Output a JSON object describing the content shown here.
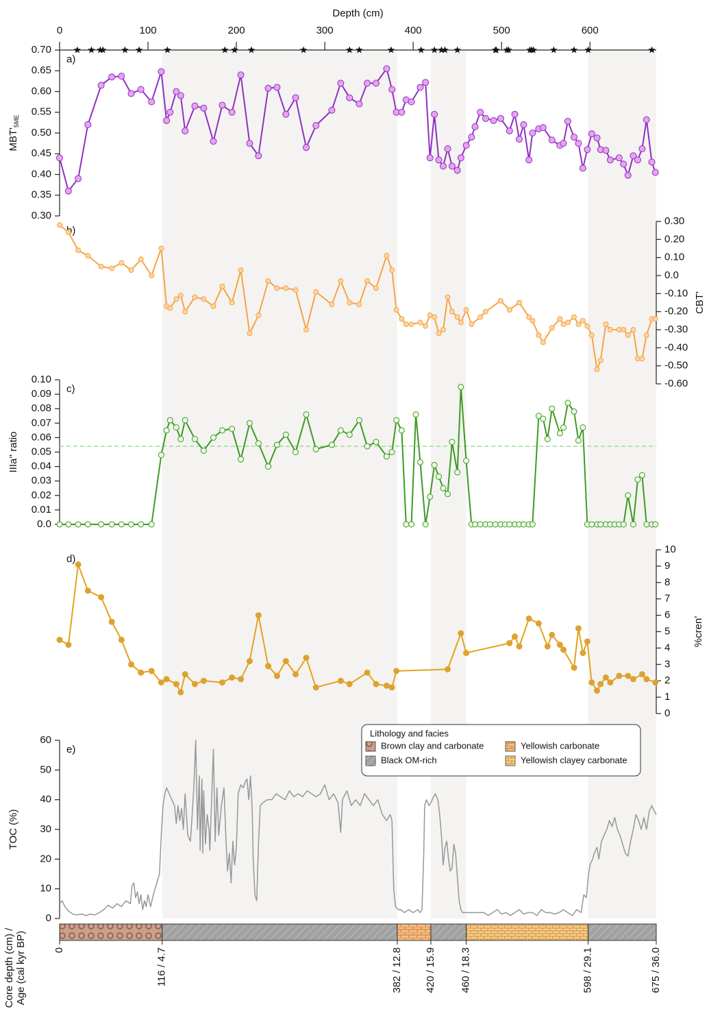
{
  "chart_data": [
    {
      "type": "line",
      "xlabel": "Depth (cm)",
      "xlim": [
        0,
        675
      ],
      "xticks": [
        0,
        100,
        200,
        300,
        400,
        500,
        600
      ],
      "stars_x": [
        20,
        36,
        46,
        49,
        74,
        90,
        122,
        187,
        198,
        217,
        276,
        328,
        339,
        375,
        409,
        424,
        432,
        436,
        450,
        493,
        494,
        506,
        508,
        532,
        534,
        536,
        559,
        582,
        598,
        670
      ],
      "panel_label": "a)",
      "ylabel": "MBT'",
      "ylabel_sub": "5ME",
      "yaxis_side": "left",
      "ylim": [
        0.3,
        0.7
      ],
      "yticks": [
        {
          "value": 0.3,
          "label": "0.30"
        },
        0.35,
        {
          "value": 0.4,
          "label": "0.40"
        },
        0.45,
        {
          "value": 0.5,
          "label": "0.50"
        },
        0.55,
        {
          "value": 0.6,
          "label": "0.60"
        },
        0.65,
        {
          "value": 0.7,
          "label": "0.70"
        }
      ],
      "color": "#8e2fc2",
      "marker_fill": "#e7a3ef",
      "markers": true,
      "x": [
        0,
        10,
        21,
        32,
        47,
        59,
        70,
        81,
        92,
        104,
        115,
        121,
        125,
        132,
        137,
        142,
        153,
        163,
        174,
        184,
        195,
        205,
        215,
        225,
        236,
        246,
        256,
        267,
        279,
        290,
        308,
        318,
        328,
        339,
        348,
        358,
        370,
        376,
        381,
        387,
        392,
        398,
        408,
        414,
        419,
        424,
        429,
        434,
        439,
        444,
        450,
        454,
        460,
        466,
        470,
        476,
        482,
        491,
        499,
        509,
        515,
        520,
        525,
        531,
        535,
        542,
        547,
        557,
        566,
        570,
        575,
        582,
        587,
        592,
        597,
        602,
        608,
        612,
        618,
        623,
        633,
        638,
        643,
        649,
        654,
        659,
        664,
        670,
        674
      ],
      "values": [
        0.44,
        0.36,
        0.39,
        0.52,
        0.615,
        0.635,
        0.637,
        0.595,
        0.605,
        0.575,
        0.648,
        0.53,
        0.55,
        0.6,
        0.59,
        0.505,
        0.565,
        0.56,
        0.48,
        0.567,
        0.55,
        0.64,
        0.475,
        0.445,
        0.608,
        0.61,
        0.545,
        0.585,
        0.465,
        0.518,
        0.555,
        0.62,
        0.585,
        0.57,
        0.62,
        0.62,
        0.655,
        0.605,
        0.55,
        0.55,
        0.58,
        0.575,
        0.61,
        0.622,
        0.44,
        0.545,
        0.435,
        0.42,
        0.462,
        0.42,
        0.41,
        0.44,
        0.47,
        0.49,
        0.515,
        0.55,
        0.535,
        0.53,
        0.535,
        0.505,
        0.545,
        0.485,
        0.52,
        0.435,
        0.5,
        0.51,
        0.513,
        0.483,
        0.47,
        0.475,
        0.528,
        0.49,
        0.475,
        0.415,
        0.46,
        0.498,
        0.488,
        0.46,
        0.458,
        0.435,
        0.44,
        0.425,
        0.398,
        0.445,
        0.435,
        0.462,
        0.532,
        0.43,
        0.405
      ]
    },
    {
      "type": "line",
      "xlim": [
        0,
        675
      ],
      "panel_label": "b)",
      "ylabel": "CBT'",
      "yaxis_side": "right",
      "ylim": [
        -0.6,
        0.3
      ],
      "yticks": [
        {
          "value": 0.3,
          "label": "0.30"
        },
        {
          "value": 0.2,
          "label": "0.20"
        },
        {
          "value": 0.1,
          "label": "0.10"
        },
        {
          "value": 0,
          "label": "0.0"
        },
        {
          "value": -0.1,
          "label": "-0.10"
        },
        {
          "value": -0.2,
          "label": "-0.20"
        },
        {
          "value": -0.3,
          "label": "-0.30"
        },
        {
          "value": -0.4,
          "label": "-0.40"
        },
        {
          "value": -0.5,
          "label": "-0.50"
        },
        {
          "value": -0.6,
          "label": "-0.60"
        }
      ],
      "color": "#f5a443",
      "marker_fill": "#fdd3a4",
      "markers": true,
      "x": [
        0,
        10,
        21,
        32,
        47,
        59,
        70,
        81,
        92,
        104,
        115,
        121,
        125,
        132,
        137,
        142,
        153,
        163,
        174,
        184,
        195,
        205,
        215,
        225,
        236,
        246,
        256,
        267,
        279,
        290,
        308,
        318,
        328,
        339,
        348,
        358,
        370,
        376,
        381,
        387,
        392,
        398,
        408,
        414,
        419,
        424,
        429,
        434,
        439,
        444,
        450,
        454,
        460,
        466,
        476,
        482,
        499,
        509,
        520,
        531,
        535,
        542,
        547,
        557,
        566,
        570,
        575,
        582,
        587,
        592,
        597,
        602,
        608,
        612,
        618,
        623,
        633,
        638,
        643,
        649,
        654,
        659,
        664,
        670,
        674
      ],
      "values": [
        0.28,
        0.24,
        0.14,
        0.11,
        0.05,
        0.04,
        0.07,
        0.03,
        0.09,
        0.0,
        0.15,
        -0.17,
        -0.18,
        -0.13,
        -0.11,
        -0.2,
        -0.12,
        -0.13,
        -0.17,
        -0.06,
        -0.15,
        0.03,
        -0.32,
        -0.22,
        -0.03,
        -0.07,
        -0.07,
        -0.08,
        -0.3,
        -0.09,
        -0.16,
        -0.03,
        -0.15,
        -0.16,
        -0.03,
        -0.07,
        0.11,
        0.03,
        -0.19,
        -0.24,
        -0.27,
        -0.27,
        -0.26,
        -0.28,
        -0.22,
        -0.23,
        -0.32,
        -0.3,
        -0.12,
        -0.2,
        -0.23,
        -0.26,
        -0.19,
        -0.27,
        -0.23,
        -0.2,
        -0.14,
        -0.19,
        -0.15,
        -0.23,
        -0.25,
        -0.33,
        -0.37,
        -0.29,
        -0.24,
        -0.27,
        -0.26,
        -0.23,
        -0.27,
        -0.25,
        -0.28,
        -0.33,
        -0.52,
        -0.47,
        -0.27,
        -0.3,
        -0.3,
        -0.3,
        -0.33,
        -0.3,
        -0.46,
        -0.46,
        -0.33,
        -0.24,
        -0.24
      ]
    },
    {
      "type": "line",
      "xlim": [
        0,
        675
      ],
      "panel_label": "c)",
      "ylabel": "IIIa'' ratio",
      "yaxis_side": "left",
      "ylim": [
        0,
        0.1
      ],
      "yticks": [
        {
          "value": 0,
          "label": "0.0"
        },
        0.01,
        0.02,
        0.03,
        0.04,
        0.05,
        0.06,
        0.07,
        0.08,
        0.09,
        {
          "value": 0.1,
          "label": "0.10"
        }
      ],
      "reference_line": 0.054,
      "reference_color": "#8fd98f",
      "color": "#3c9a22",
      "marker_fill": "#ecf8e4",
      "markers": true,
      "x": [
        0,
        10,
        21,
        32,
        47,
        59,
        70,
        81,
        92,
        104,
        115,
        121,
        125,
        132,
        137,
        142,
        153,
        163,
        174,
        184,
        195,
        205,
        215,
        225,
        236,
        246,
        256,
        267,
        279,
        290,
        308,
        318,
        328,
        339,
        348,
        358,
        370,
        376,
        381,
        387,
        392,
        398,
        403,
        408,
        414,
        419,
        424,
        429,
        434,
        439,
        444,
        450,
        454,
        460,
        466,
        470,
        476,
        482,
        487,
        493,
        499,
        504,
        509,
        515,
        520,
        525,
        531,
        535,
        542,
        547,
        552,
        557,
        566,
        570,
        575,
        582,
        587,
        592,
        597,
        602,
        608,
        612,
        618,
        623,
        628,
        633,
        638,
        643,
        649,
        654,
        659,
        664,
        670,
        674
      ],
      "values": [
        0,
        0,
        0,
        0,
        0,
        0,
        0,
        0,
        0,
        0,
        0.048,
        0.065,
        0.072,
        0.067,
        0.059,
        0.072,
        0.059,
        0.051,
        0.06,
        0.065,
        0.066,
        0.045,
        0.07,
        0.056,
        0.04,
        0.055,
        0.062,
        0.05,
        0.076,
        0.052,
        0.055,
        0.065,
        0.062,
        0.072,
        0.054,
        0.057,
        0.047,
        0.05,
        0.072,
        0.065,
        0,
        0,
        0.076,
        0.043,
        0,
        0.019,
        0.041,
        0.033,
        0.025,
        0.021,
        0.057,
        0.036,
        0.095,
        0.044,
        0,
        0,
        0,
        0,
        0,
        0,
        0,
        0,
        0,
        0,
        0,
        0,
        0,
        0,
        0.075,
        0.073,
        0.059,
        0.08,
        0.063,
        0.067,
        0.084,
        0.078,
        0.058,
        0.067,
        0,
        0,
        0,
        0,
        0,
        0,
        0,
        0,
        0,
        0.02,
        0,
        0.031,
        0.034,
        0,
        0,
        0
      ]
    },
    {
      "type": "line",
      "xlim": [
        0,
        675
      ],
      "panel_label": "d)",
      "ylabel": "%cren'",
      "yaxis_side": "right",
      "ylim": [
        0,
        10
      ],
      "yticks": [
        0,
        1,
        2,
        3,
        4,
        5,
        6,
        7,
        8,
        9,
        10
      ],
      "color": "#e4a21b",
      "marker_fill": "#d9a23a",
      "markers": true,
      "x": [
        0,
        10,
        21,
        32,
        47,
        59,
        70,
        81,
        92,
        104,
        115,
        121,
        132,
        137,
        142,
        153,
        163,
        184,
        195,
        205,
        215,
        225,
        236,
        246,
        256,
        267,
        279,
        290,
        318,
        328,
        348,
        358,
        370,
        376,
        381,
        439,
        454,
        460,
        509,
        515,
        520,
        531,
        542,
        552,
        557,
        566,
        570,
        582,
        587,
        592,
        597,
        602,
        608,
        612,
        618,
        623,
        633,
        643,
        649,
        659,
        664,
        674
      ],
      "values": [
        4.5,
        4.2,
        9.1,
        7.5,
        7.1,
        5.6,
        4.5,
        3.0,
        2.5,
        2.6,
        1.9,
        2.1,
        1.8,
        1.3,
        2.4,
        1.8,
        2.0,
        1.9,
        2.2,
        2.1,
        3.2,
        6.0,
        2.9,
        2.3,
        3.2,
        2.4,
        3.4,
        1.6,
        2.0,
        1.8,
        2.5,
        1.8,
        1.7,
        1.6,
        2.6,
        2.7,
        4.9,
        3.7,
        4.3,
        4.7,
        4.1,
        5.8,
        5.5,
        4.1,
        4.8,
        4.2,
        3.9,
        2.8,
        5.2,
        3.7,
        4.4,
        1.9,
        1.4,
        1.8,
        2.2,
        1.9,
        2.3,
        2.3,
        2.1,
        2.4,
        2.1,
        1.9
      ]
    },
    {
      "type": "line",
      "xlim": [
        0,
        675
      ],
      "panel_label": "e)",
      "ylabel": "TOC (%)",
      "yaxis_side": "left",
      "ylim": [
        0,
        60
      ],
      "yticks": [
        0,
        10,
        20,
        30,
        40,
        50,
        60
      ],
      "color": "#979797",
      "markers": false,
      "x": [
        0,
        3,
        6,
        10,
        15,
        20,
        25,
        30,
        35,
        40,
        45,
        50,
        55,
        60,
        65,
        70,
        75,
        80,
        82,
        84,
        86,
        88,
        90,
        92,
        94,
        96,
        98,
        100,
        103,
        106,
        110,
        113,
        115,
        117,
        119,
        121,
        124,
        127,
        130,
        132,
        134,
        136,
        138,
        140,
        142,
        145,
        148,
        150,
        152,
        154,
        156,
        158,
        159,
        161,
        162,
        163,
        165,
        167,
        169,
        170,
        172,
        174,
        176,
        178,
        180,
        183,
        186,
        188,
        190,
        192,
        194,
        196,
        198,
        200,
        202,
        205,
        208,
        210,
        212,
        214,
        216,
        218,
        219,
        221,
        223,
        225,
        227,
        230,
        235,
        240,
        245,
        250,
        255,
        260,
        265,
        270,
        275,
        280,
        285,
        290,
        295,
        300,
        305,
        310,
        315,
        318,
        320,
        325,
        330,
        335,
        340,
        345,
        350,
        355,
        360,
        365,
        370,
        374,
        376,
        378,
        380,
        383,
        386,
        390,
        395,
        400,
        405,
        408,
        410,
        412,
        413,
        415,
        418,
        420,
        423,
        425,
        428,
        430,
        432,
        434,
        436,
        438,
        440,
        442,
        444,
        446,
        448,
        450,
        452,
        454,
        456,
        460,
        470,
        480,
        485,
        490,
        495,
        500,
        505,
        510,
        515,
        520,
        525,
        530,
        535,
        540,
        545,
        550,
        555,
        560,
        565,
        570,
        575,
        580,
        585,
        590,
        593,
        596,
        598,
        600,
        603,
        605,
        608,
        610,
        613,
        616,
        619,
        622,
        625,
        628,
        631,
        634,
        637,
        640,
        643,
        646,
        649,
        652,
        655,
        658,
        661,
        664,
        667,
        670,
        673,
        675
      ],
      "values": [
        5,
        6,
        4,
        2.5,
        1.5,
        1.2,
        1.5,
        1,
        1.5,
        1.2,
        2,
        3,
        4.5,
        3.5,
        5,
        4,
        6,
        5,
        11,
        12,
        7,
        9,
        5,
        8,
        3,
        6,
        4,
        8,
        4,
        8,
        12,
        15,
        28,
        38,
        42,
        44,
        42,
        40,
        38,
        32,
        38,
        33,
        37,
        30,
        42,
        28,
        26,
        35,
        45,
        60,
        30,
        48,
        23,
        47,
        22,
        43,
        25,
        35,
        30,
        23,
        40,
        57,
        26,
        44,
        28,
        38,
        44,
        28,
        16,
        22,
        12,
        26,
        18,
        24,
        42,
        45,
        44,
        46,
        47,
        40,
        48,
        36,
        20,
        8,
        6,
        25,
        38,
        39,
        40,
        40,
        42,
        41,
        40,
        43,
        41,
        42,
        41,
        43,
        42,
        41,
        42,
        45,
        40,
        42,
        39,
        29,
        40,
        43,
        38,
        40,
        38,
        42,
        40,
        38,
        40,
        35,
        33,
        35,
        33,
        10,
        4,
        3,
        3,
        2,
        3,
        2,
        3,
        2,
        3,
        22,
        38,
        40,
        38,
        39,
        41,
        42,
        40,
        35,
        28,
        18,
        24,
        26,
        20,
        16,
        17,
        25,
        22,
        14,
        6,
        3,
        2,
        2,
        2,
        2,
        1,
        2,
        3,
        1.5,
        2,
        1,
        2,
        3,
        1.5,
        2,
        2,
        1,
        3,
        2,
        2,
        1.5,
        2,
        3,
        2,
        1,
        3,
        2,
        8,
        7,
        14,
        18,
        20,
        22,
        24,
        20,
        26,
        28,
        30,
        33,
        31,
        34,
        30,
        28,
        25,
        22,
        21,
        26,
        30,
        35,
        33,
        30,
        34,
        30,
        36,
        38,
        36,
        35
      ]
    },
    {
      "type": "strip",
      "xlim": [
        0,
        675
      ],
      "label": [
        "Core depth (cm) /",
        "Age (cal kyr BP)"
      ],
      "ticks": [
        0,
        {
          "value": 116,
          "label": "116 / 4.7"
        },
        {
          "value": 382,
          "label": "382 / 12.8"
        },
        {
          "value": 420,
          "label": "420 / 15.9"
        },
        {
          "value": 460,
          "label": "460 / 18.3"
        },
        {
          "value": 598,
          "label": "598 / 29.1"
        },
        {
          "value": 675,
          "label": "675 / 36.0"
        }
      ],
      "segment_facies": [
        0,
        1,
        2,
        1,
        3,
        1
      ],
      "legend_title": "Lithology and facies",
      "facies": [
        {
          "name": "Brown clay and carbonate",
          "color": "#c9a08c"
        },
        {
          "name": "Black OM-rich",
          "color": "#a2a2a2"
        },
        {
          "name": "Yellowish carbonate",
          "color": "#f7bd84"
        },
        {
          "name": "Yellowish clayey carbonate",
          "color": "#f8cf90"
        }
      ]
    }
  ]
}
